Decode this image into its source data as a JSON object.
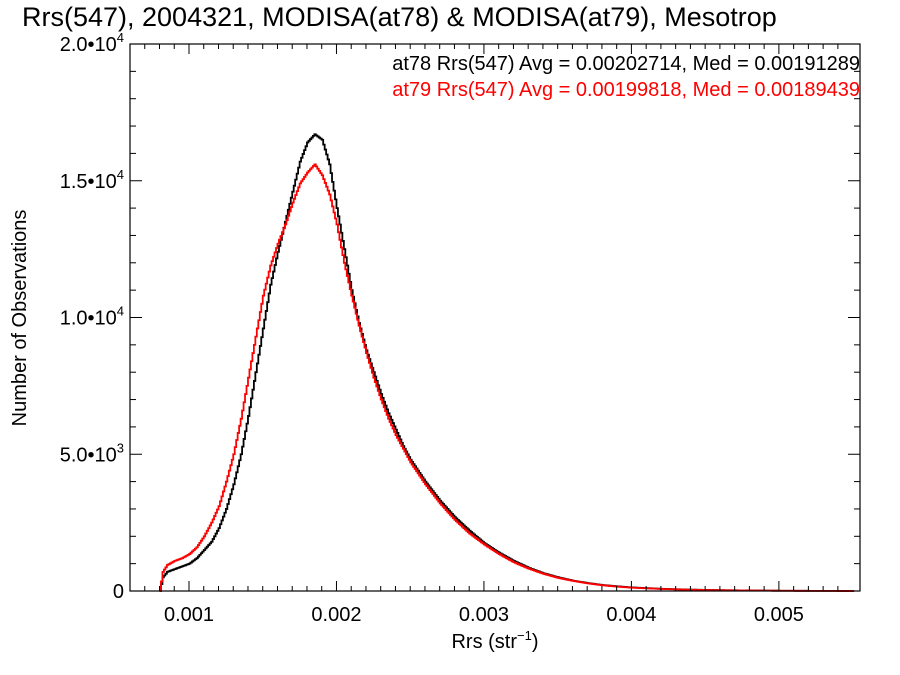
{
  "chart_data": {
    "type": "line",
    "title": "Rrs(547), 2004321, MODISA(at78) & MODISA(at79), Mesotrop",
    "xlabel_main": "Rrs (str",
    "xlabel_sup": "−1",
    "xlabel_close": ")",
    "ylabel": "Number of Observations",
    "xlim": [
      0.0006,
      0.00555
    ],
    "ylim": [
      0,
      20000
    ],
    "x_ticks": [
      {
        "value": 0.001,
        "label": "0.001"
      },
      {
        "value": 0.002,
        "label": "0.002"
      },
      {
        "value": 0.003,
        "label": "0.003"
      },
      {
        "value": 0.004,
        "label": "0.004"
      },
      {
        "value": 0.005,
        "label": "0.005"
      }
    ],
    "y_ticks": [
      {
        "value": 0,
        "base": "0",
        "exp": ""
      },
      {
        "value": 5000,
        "base": "5.0•10",
        "exp": "3"
      },
      {
        "value": 10000,
        "base": "1.0•10",
        "exp": "4"
      },
      {
        "value": 15000,
        "base": "1.5•10",
        "exp": "4"
      },
      {
        "value": 20000,
        "base": "2.0•10",
        "exp": "4"
      }
    ],
    "legend": [
      {
        "text": "at78 Rrs(547) Avg = 0.00202714, Med = 0.00191289",
        "color": "#000000"
      },
      {
        "text": "at79 Rrs(547) Avg = 0.00199818, Med = 0.00189439",
        "color": "#ff0000"
      }
    ],
    "series": [
      {
        "color": "#000000",
        "x": [
          0.0008,
          0.00082,
          0.00085,
          0.0009,
          0.00095,
          0.001,
          0.00105,
          0.0011,
          0.00115,
          0.0012,
          0.00125,
          0.0013,
          0.00135,
          0.0014,
          0.00145,
          0.0015,
          0.00155,
          0.0016,
          0.00165,
          0.0017,
          0.00175,
          0.0018,
          0.00185,
          0.0019,
          0.00195,
          0.002,
          0.00205,
          0.0021,
          0.00215,
          0.0022,
          0.00225,
          0.0023,
          0.00235,
          0.0024,
          0.00245,
          0.0025,
          0.0026,
          0.0027,
          0.0028,
          0.0029,
          0.003,
          0.0031,
          0.0032,
          0.0033,
          0.0034,
          0.0035,
          0.0036,
          0.0037,
          0.0038,
          0.0039,
          0.004,
          0.0042,
          0.0044,
          0.0046,
          0.0048,
          0.005,
          0.0052,
          0.0054,
          0.0055
        ],
        "y": [
          0,
          500,
          700,
          800,
          900,
          1000,
          1200,
          1500,
          1800,
          2300,
          3000,
          3900,
          5000,
          6400,
          8000,
          9600,
          11200,
          12400,
          13500,
          14600,
          15700,
          16400,
          16700,
          16500,
          15600,
          14000,
          12500,
          11000,
          9800,
          8800,
          8000,
          7200,
          6500,
          5900,
          5300,
          4800,
          4000,
          3300,
          2700,
          2200,
          1750,
          1400,
          1100,
          850,
          650,
          500,
          380,
          290,
          220,
          170,
          130,
          80,
          50,
          30,
          20,
          10,
          6,
          3,
          2
        ]
      },
      {
        "color": "#ff0000",
        "x": [
          0.0008,
          0.00082,
          0.00085,
          0.0009,
          0.00095,
          0.001,
          0.00105,
          0.0011,
          0.00115,
          0.0012,
          0.00125,
          0.0013,
          0.00135,
          0.0014,
          0.00145,
          0.0015,
          0.00155,
          0.0016,
          0.00165,
          0.0017,
          0.00175,
          0.0018,
          0.00185,
          0.0019,
          0.00195,
          0.002,
          0.00205,
          0.0021,
          0.00215,
          0.0022,
          0.00225,
          0.0023,
          0.00235,
          0.0024,
          0.00245,
          0.0025,
          0.0026,
          0.0027,
          0.0028,
          0.0029,
          0.003,
          0.0031,
          0.0032,
          0.0033,
          0.0034,
          0.0035,
          0.0036,
          0.0037,
          0.0038,
          0.0039,
          0.004,
          0.0042,
          0.0044,
          0.0046,
          0.0048,
          0.005,
          0.0052,
          0.0054,
          0.0055
        ],
        "y": [
          0,
          700,
          950,
          1100,
          1200,
          1350,
          1600,
          2000,
          2500,
          3100,
          4000,
          5000,
          6300,
          7800,
          9300,
          10800,
          11900,
          12700,
          13400,
          14200,
          14900,
          15300,
          15600,
          15200,
          14500,
          13400,
          12000,
          10800,
          9700,
          8700,
          7800,
          7000,
          6300,
          5700,
          5200,
          4700,
          3900,
          3200,
          2600,
          2100,
          1700,
          1350,
          1050,
          820,
          630,
          480,
          370,
          280,
          210,
          160,
          120,
          75,
          45,
          28,
          18,
          10,
          6,
          3,
          2
        ]
      }
    ]
  }
}
